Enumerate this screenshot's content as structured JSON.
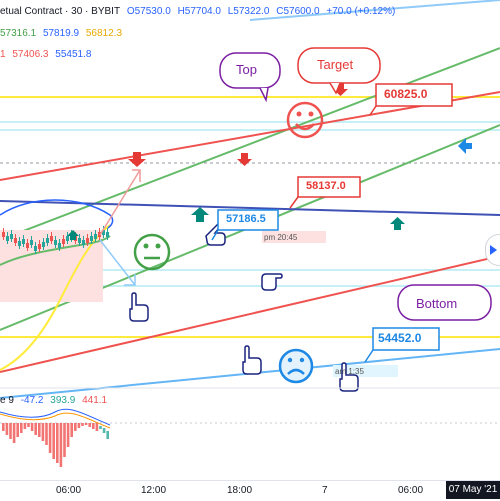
{
  "header": {
    "title": "etual Contract · 30 · BYBIT",
    "open": "O57530.0",
    "high": "H57704.0",
    "low": "L57322.0",
    "close": "C57600.0",
    "change": "+70.0 (+0.12%)",
    "row2": [
      "57316.1",
      "57819.9",
      "56812.3"
    ],
    "row3_prefix": "1",
    "row3": [
      "57406.3",
      "55451.8"
    ]
  },
  "annotations": {
    "top_label": "Top",
    "target_label": "Target",
    "bottom_label": "Bottom",
    "price_60825": "60825.0",
    "price_58137": "58137.0",
    "price_57186": "57186.5",
    "price_54452": "54452.0",
    "time_pm": "pm 20:45",
    "time_am": "am 1:35"
  },
  "indicator": {
    "label": "e 9",
    "values": [
      "-47.2",
      "393.9",
      "441.1"
    ]
  },
  "time_axis": {
    "ticks": [
      "06:00",
      "12:00",
      "18:00",
      "7",
      "06:00"
    ],
    "current_date": "07 May '21"
  },
  "colors": {
    "up": "#26a69a",
    "down": "#ef5350",
    "green_channel": "#66bb6a",
    "red_channel": "#ef5350",
    "blue_line": "#2962ff",
    "yellow": "#ffeb3b",
    "cyan": "#b2ebf2"
  }
}
